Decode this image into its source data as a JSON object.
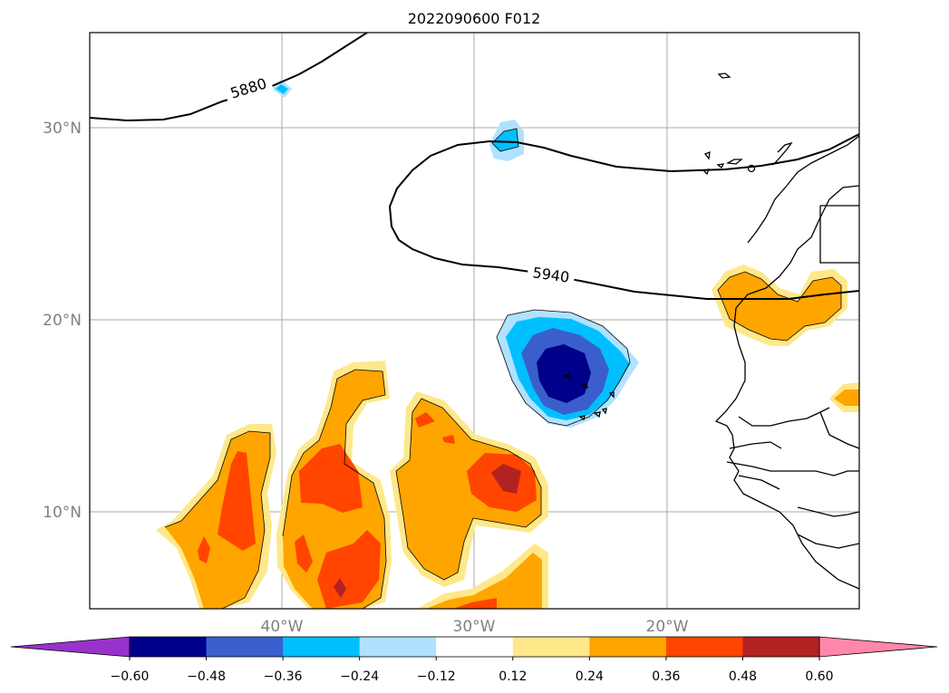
{
  "title": "2022090600 F012",
  "map": {
    "longitude_ticks": [
      "40°W",
      "30°W",
      "20°W"
    ],
    "latitude_ticks": [
      "30°N",
      "20°N",
      "10°N"
    ],
    "gridlines": true
  },
  "contour_lines": [
    {
      "label": "5880"
    },
    {
      "label": "5940"
    }
  ],
  "colorbar": {
    "orientation": "horizontal",
    "extend": "both",
    "ticks": [
      "−0.60",
      "−0.48",
      "−0.36",
      "−0.24",
      "−0.12",
      "0.12",
      "0.24",
      "0.36",
      "0.48",
      "0.60"
    ],
    "colors": [
      "#9932cc",
      "#00008b",
      "#3a5fcd",
      "#00bfff",
      "#b0e2ff",
      "#ffffff",
      "#ffe88a",
      "#ffa500",
      "#ff4500",
      "#b22222",
      "#ff88aa"
    ]
  }
}
